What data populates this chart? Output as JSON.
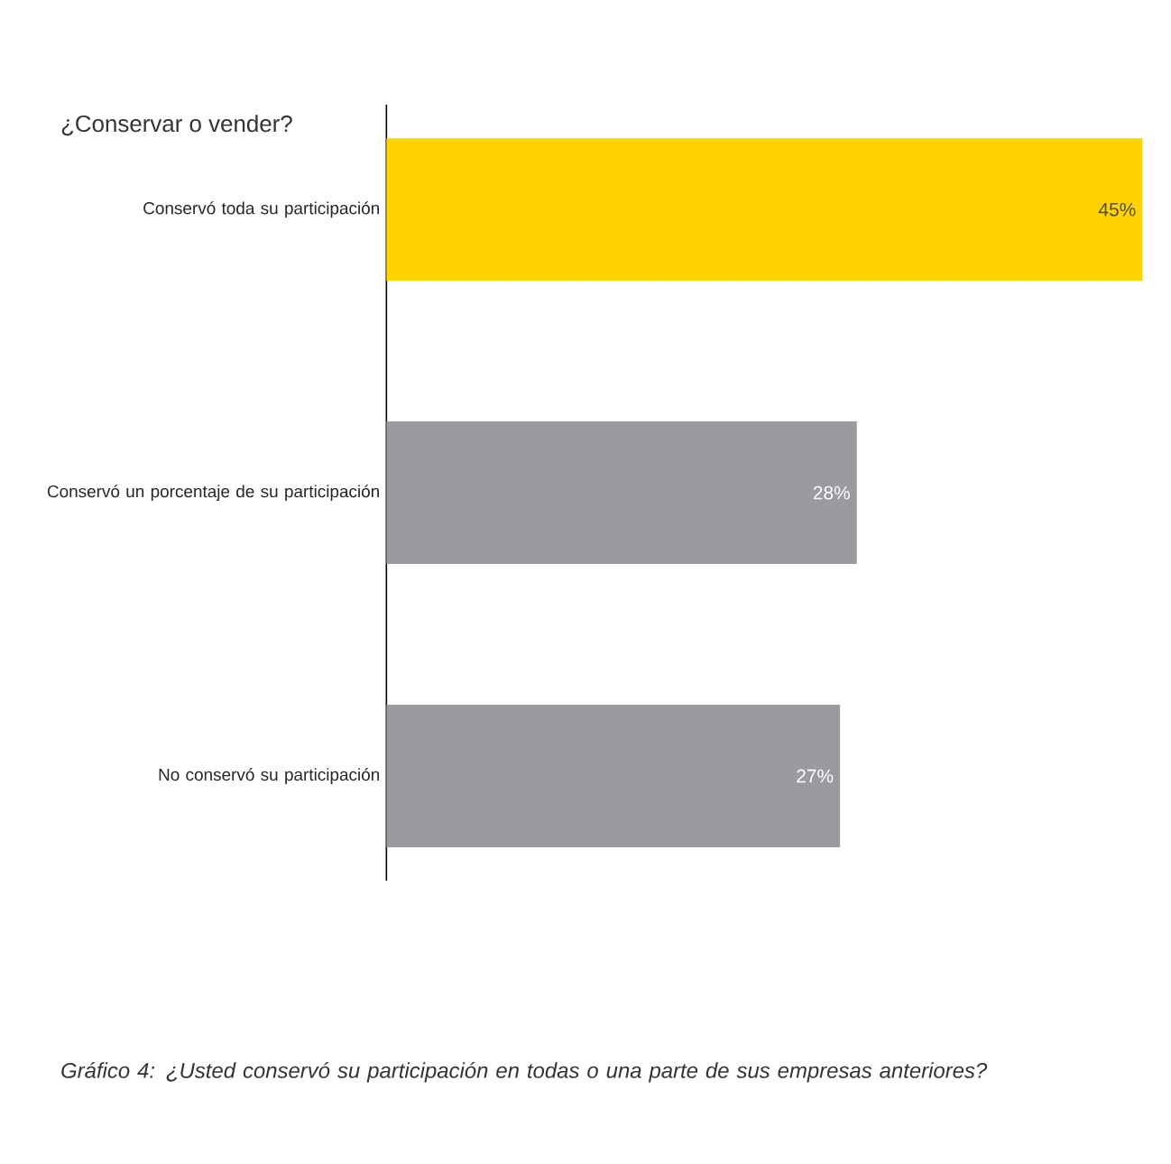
{
  "chart_data": {
    "type": "bar",
    "orientation": "horizontal",
    "title": "¿Conservar o vender?",
    "categories": [
      "Conservó toda su participación",
      "Conservó un porcentaje de su participación",
      "No conservó su participación"
    ],
    "values": [
      45,
      28,
      27
    ],
    "colors": [
      "#ffd200",
      "#999b9e",
      "#999b9e"
    ],
    "value_labels": [
      "45%",
      "28%",
      "27%"
    ],
    "annotations": [
      "*Gráfico 4: ¿Usted conservó su participación en todas o una parte de sus empresas anteriores?*"
    ]
  }
}
